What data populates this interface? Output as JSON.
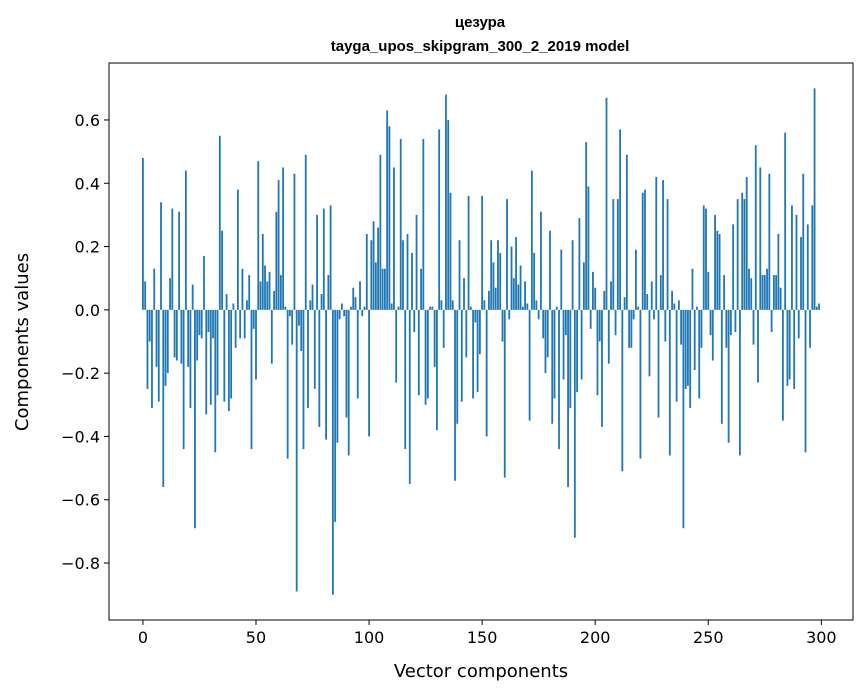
{
  "chart_data": {
    "type": "bar",
    "title": "цезура",
    "subtitle": "tayga_upos_skipgram_300_2_2019 model",
    "xlabel": "Vector components",
    "ylabel": "Components values",
    "xlim": [
      -15,
      314
    ],
    "ylim": [
      -0.98,
      0.78
    ],
    "xticks": [
      0,
      50,
      100,
      150,
      200,
      250,
      300
    ],
    "xtick_labels": [
      "0",
      "50",
      "100",
      "150",
      "200",
      "250",
      "300"
    ],
    "yticks": [
      -0.8,
      -0.6,
      -0.4,
      -0.2,
      0.0,
      0.2,
      0.4,
      0.6
    ],
    "ytick_labels": [
      "−0.8",
      "−0.6",
      "−0.4",
      "−0.2",
      "0.0",
      "0.2",
      "0.4",
      "0.6"
    ],
    "grid": false,
    "legend": "none",
    "color": "#1f77b4",
    "values": [
      0.48,
      0.09,
      -0.25,
      -0.1,
      -0.31,
      0.13,
      -0.18,
      -0.29,
      0.34,
      -0.56,
      -0.24,
      -0.2,
      0.1,
      0.32,
      -0.15,
      -0.16,
      0.31,
      -0.17,
      -0.44,
      0.44,
      -0.18,
      -0.31,
      0.08,
      -0.69,
      -0.16,
      -0.08,
      -0.09,
      0.17,
      -0.33,
      -0.07,
      -0.3,
      -0.09,
      -0.45,
      -0.27,
      0.55,
      0.25,
      -0.29,
      0.05,
      -0.32,
      -0.28,
      0.02,
      -0.12,
      0.38,
      -0.09,
      0.13,
      -0.09,
      0.03,
      0.11,
      -0.44,
      -0.06,
      -0.22,
      0.47,
      0.09,
      0.24,
      0.14,
      0.09,
      0.12,
      -0.17,
      0.06,
      0.31,
      0.41,
      0.11,
      0.45,
      0.01,
      -0.47,
      -0.02,
      -0.11,
      0.43,
      -0.89,
      -0.05,
      -0.13,
      -0.44,
      0.49,
      -0.31,
      0.03,
      0.08,
      -0.25,
      0.3,
      -0.37,
      0.05,
      0.32,
      -0.41,
      0.11,
      0.33,
      -0.9,
      -0.67,
      -0.42,
      -0.03,
      0.02,
      -0.02,
      -0.34,
      -0.46,
      0.01,
      0.07,
      0.04,
      -0.28,
      0.09,
      -0.02,
      0.01,
      0.24,
      -0.4,
      0.22,
      0.28,
      0.15,
      0.26,
      0.49,
      0.13,
      0.13,
      0.63,
      0.58,
      0.02,
      0.45,
      -0.23,
      0.01,
      0.54,
      0.22,
      -0.44,
      0.24,
      -0.55,
      0.18,
      -0.07,
      0.3,
      -0.27,
      0.13,
      0.54,
      -0.3,
      -0.28,
      0.01,
      0.01,
      -0.18,
      -0.38,
      0.57,
      0.03,
      -0.12,
      0.68,
      0.6,
      0.37,
      0.03,
      -0.54,
      -0.36,
      0.22,
      -0.29,
      0.1,
      -0.15,
      0.36,
      0.01,
      -0.28,
      -0.04,
      -0.26,
      -0.14,
      0.36,
      0.03,
      -0.4,
      0.06,
      0.22,
      0.15,
      0.07,
      0.22,
      0.18,
      -0.1,
      -0.53,
      0.35,
      -0.03,
      0.2,
      0.1,
      0.23,
      0.08,
      0.14,
      0.01,
      0.09,
      0.02,
      -0.35,
      0.44,
      0.18,
      0.03,
      -0.03,
      0.31,
      -0.09,
      -0.2,
      -0.15,
      0.25,
      -0.36,
      -0.28,
      0.01,
      -0.44,
      0.19,
      -0.22,
      -0.08,
      -0.56,
      -0.31,
      0.22,
      -0.72,
      -0.26,
      0.29,
      -0.22,
      0.15,
      0.53,
      0.39,
      -0.06,
      0.12,
      0.07,
      -0.27,
      -0.1,
      -0.37,
      0.06,
      0.67,
      -0.17,
      0.09,
      0.35,
      -0.08,
      0.35,
      0.57,
      -0.51,
      0.04,
      0.49,
      -0.12,
      -0.12,
      -0.03,
      0.19,
      0.01,
      -0.47,
      0.37,
      0.38,
      0.05,
      -0.21,
      0.09,
      -0.03,
      0.42,
      -0.34,
      0.11,
      0.41,
      -0.1,
      0.35,
      -0.46,
      0.06,
      0.02,
      -0.29,
      0.03,
      -0.11,
      -0.69,
      -0.25,
      -0.24,
      -0.31,
      0.13,
      -0.19,
      0.01,
      -0.28,
      -0.12,
      0.33,
      0.32,
      0.12,
      -0.08,
      -0.16,
      0.3,
      0.25,
      0.24,
      -0.36,
      0.11,
      -0.12,
      -0.42,
      -0.08,
      0.27,
      -0.07,
      0.35,
      -0.46,
      0.37,
      0.35,
      0.42,
      0.13,
      0.1,
      -0.11,
      0.52,
      -0.23,
      0.45,
      0.11,
      0.11,
      0.13,
      0.43,
      -0.07,
      0.11,
      0.11,
      0.24,
      0.07,
      -0.35,
      0.56,
      -0.24,
      -0.22,
      0.33,
      -0.25,
      0.3,
      -0.09,
      0.23,
      0.43,
      -0.45,
      0.27,
      -0.12,
      0.33,
      0.7,
      0.01,
      0.02
    ]
  }
}
